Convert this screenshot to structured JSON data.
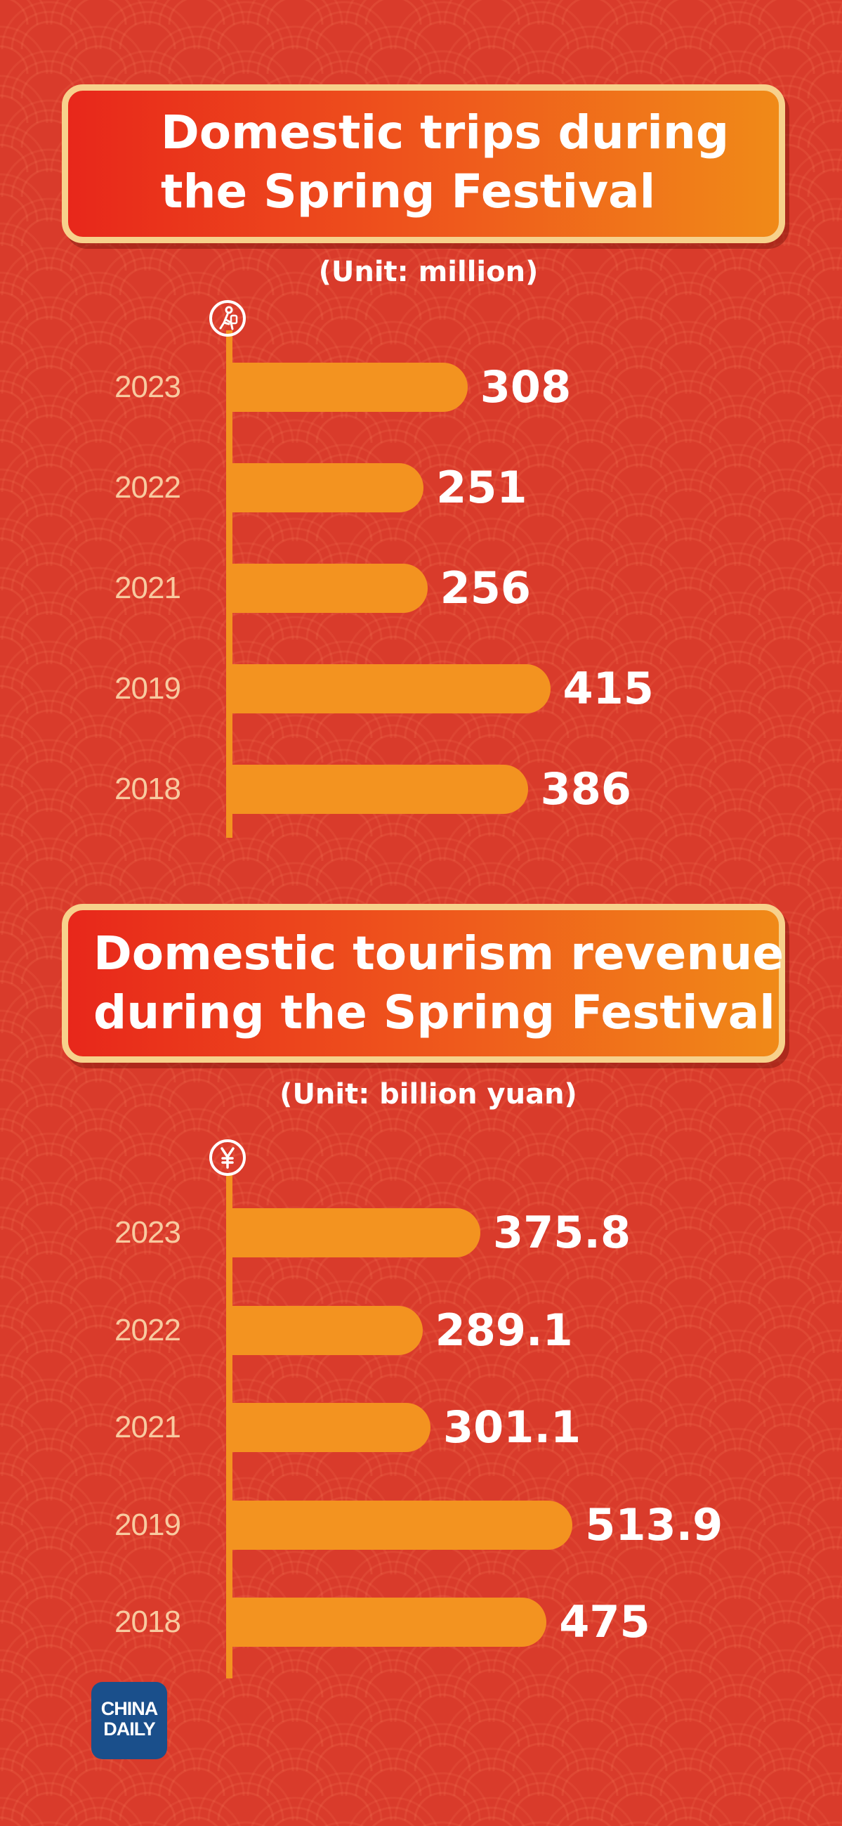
{
  "chart_data": [
    {
      "type": "bar",
      "orientation": "horizontal",
      "title": "Domestic trips during the Spring Festival",
      "title_lines": [
        "Domestic trips during",
        "the Spring Festival"
      ],
      "unit": "(Unit: million)",
      "categories": [
        "2023",
        "2022",
        "2021",
        "2019",
        "2018"
      ],
      "values": [
        308,
        251,
        256,
        415,
        386
      ],
      "value_labels": [
        "308",
        "251",
        "256",
        "415",
        "386"
      ],
      "bar_color": "#f39320",
      "axis_icon": "traveler-icon",
      "grid": false
    },
    {
      "type": "bar",
      "orientation": "horizontal",
      "title": "Domestic tourism revenue during the Spring Festival",
      "title_lines": [
        "Domestic tourism revenue",
        "during the Spring Festival"
      ],
      "unit": "(Unit: billion yuan)",
      "categories": [
        "2023",
        "2022",
        "2021",
        "2019",
        "2018"
      ],
      "values": [
        375.8,
        289.1,
        301.1,
        513.9,
        475
      ],
      "value_labels": [
        "375.8",
        "289.1",
        "301.1",
        "513.9",
        "475"
      ],
      "bar_color": "#f39320",
      "axis_icon": "yuan-icon",
      "grid": false
    }
  ],
  "logo": {
    "line1": "CHINA",
    "line2": "DAILY"
  },
  "colors": {
    "background": "#d93b2b",
    "bar": "#f39320",
    "year_text": "#f8caa0",
    "title_border": "#f7d18c"
  }
}
